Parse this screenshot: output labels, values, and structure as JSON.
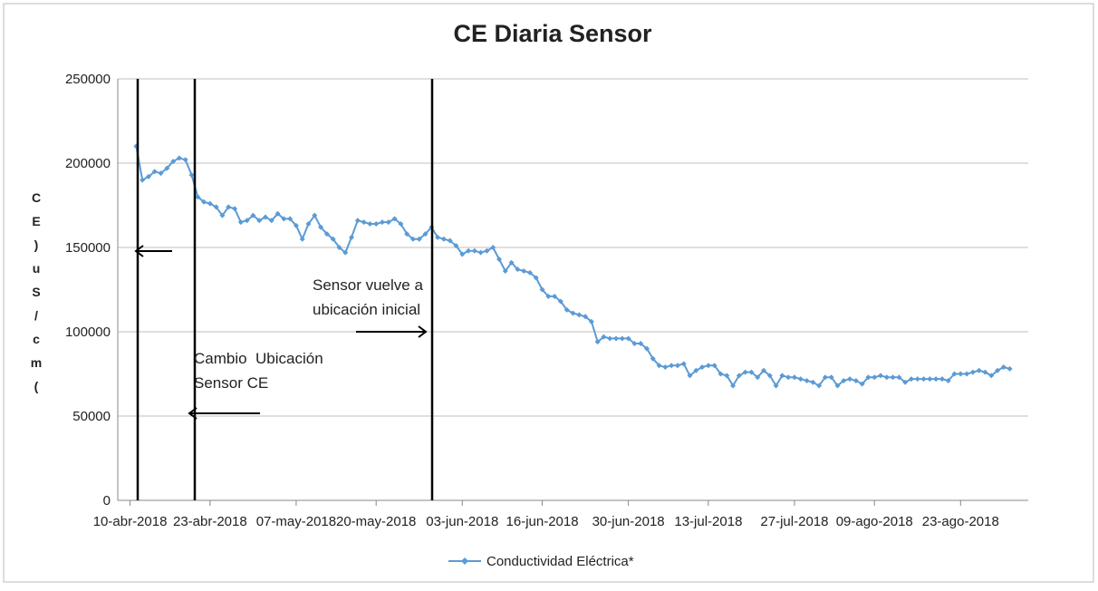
{
  "chart_data": {
    "type": "line",
    "title": "CE Diaria Sensor",
    "y_label": "CE)uS/cm(",
    "annotations": [
      [
        "Sensor vuelve a",
        "ubicación inicial"
      ],
      [
        "Cambio  Ubicación",
        "Sensor CE"
      ]
    ],
    "x": [
      "2018-04-11",
      "2018-04-12",
      "2018-04-13",
      "2018-04-14",
      "2018-04-15",
      "2018-04-16",
      "2018-04-17",
      "2018-04-18",
      "2018-04-19",
      "2018-04-20",
      "2018-04-21",
      "2018-04-22",
      "2018-04-23",
      "2018-04-24",
      "2018-04-25",
      "2018-04-26",
      "2018-04-27",
      "2018-04-28",
      "2018-04-29",
      "2018-04-30",
      "2018-05-01",
      "2018-05-02",
      "2018-05-03",
      "2018-05-04",
      "2018-05-05",
      "2018-05-06",
      "2018-05-07",
      "2018-05-08",
      "2018-05-09",
      "2018-05-10",
      "2018-05-11",
      "2018-05-12",
      "2018-05-13",
      "2018-05-14",
      "2018-05-15",
      "2018-05-16",
      "2018-05-17",
      "2018-05-18",
      "2018-05-19",
      "2018-05-20",
      "2018-05-21",
      "2018-05-22",
      "2018-05-23",
      "2018-05-24",
      "2018-05-25",
      "2018-05-26",
      "2018-05-27",
      "2018-05-28",
      "2018-05-29",
      "2018-05-30",
      "2018-05-31",
      "2018-06-01",
      "2018-06-02",
      "2018-06-03",
      "2018-06-04",
      "2018-06-05",
      "2018-06-06",
      "2018-06-07",
      "2018-06-08",
      "2018-06-09",
      "2018-06-10",
      "2018-06-11",
      "2018-06-12",
      "2018-06-13",
      "2018-06-14",
      "2018-06-15",
      "2018-06-16",
      "2018-06-17",
      "2018-06-18",
      "2018-06-19",
      "2018-06-20",
      "2018-06-21",
      "2018-06-22",
      "2018-06-23",
      "2018-06-24",
      "2018-06-25",
      "2018-06-26",
      "2018-06-27",
      "2018-06-28",
      "2018-06-29",
      "2018-06-30",
      "2018-07-01",
      "2018-07-02",
      "2018-07-03",
      "2018-07-04",
      "2018-07-05",
      "2018-07-06",
      "2018-07-07",
      "2018-07-08",
      "2018-07-09",
      "2018-07-10",
      "2018-07-11",
      "2018-07-12",
      "2018-07-13",
      "2018-07-14",
      "2018-07-15",
      "2018-07-16",
      "2018-07-17",
      "2018-07-18",
      "2018-07-19",
      "2018-07-20",
      "2018-07-21",
      "2018-07-22",
      "2018-07-23",
      "2018-07-24",
      "2018-07-25",
      "2018-07-26",
      "2018-07-27",
      "2018-07-28",
      "2018-07-29",
      "2018-07-30",
      "2018-07-31",
      "2018-08-01",
      "2018-08-02",
      "2018-08-03",
      "2018-08-04",
      "2018-08-05",
      "2018-08-06",
      "2018-08-07",
      "2018-08-08",
      "2018-08-09",
      "2018-08-10",
      "2018-08-11",
      "2018-08-12",
      "2018-08-13",
      "2018-08-14",
      "2018-08-15",
      "2018-08-16",
      "2018-08-17",
      "2018-08-18",
      "2018-08-19",
      "2018-08-20",
      "2018-08-21",
      "2018-08-22",
      "2018-08-23",
      "2018-08-24",
      "2018-08-25",
      "2018-08-26",
      "2018-08-27",
      "2018-08-28",
      "2018-08-29",
      "2018-08-30",
      "2018-08-31"
    ],
    "series": [
      {
        "name": "Conductividad Eléctrica*",
        "color": "#5b9bd5",
        "values": [
          210000,
          190000,
          192000,
          195000,
          194000,
          197000,
          201000,
          203000,
          202000,
          193000,
          180000,
          177000,
          176000,
          174000,
          169000,
          174000,
          173000,
          165000,
          166000,
          169000,
          166000,
          168000,
          166000,
          170000,
          167000,
          167000,
          163000,
          155000,
          164000,
          169000,
          162000,
          158000,
          155000,
          150000,
          147000,
          156000,
          166000,
          165000,
          164000,
          164000,
          165000,
          165000,
          167000,
          164000,
          158000,
          155000,
          155000,
          158000,
          162000,
          156000,
          155000,
          154000,
          151000,
          146000,
          148000,
          148000,
          147000,
          148000,
          150000,
          143000,
          136000,
          141000,
          137000,
          136000,
          135000,
          132000,
          125000,
          121000,
          121000,
          118000,
          113000,
          111000,
          110000,
          109000,
          106000,
          94000,
          97000,
          96000,
          96000,
          96000,
          96000,
          93000,
          93000,
          90000,
          84000,
          80000,
          79000,
          80000,
          80000,
          81000,
          74000,
          77000,
          79000,
          80000,
          80000,
          75000,
          74000,
          68000,
          74000,
          76000,
          76000,
          73000,
          77000,
          74000,
          68000,
          74000,
          73000,
          73000,
          72000,
          71000,
          70000,
          68000,
          73000,
          73000,
          68000,
          71000,
          72000,
          71000,
          69000,
          73000,
          73000,
          74000,
          73000,
          73000,
          73000,
          70000,
          72000,
          72000,
          72000,
          72000,
          72000,
          72000,
          71000,
          75000,
          75000,
          75000,
          76000,
          77000,
          76000,
          74000,
          77000,
          79000,
          78000
        ]
      }
    ],
    "xlim": [
      "2018-04-08",
      "2018-09-03"
    ],
    "xticks": [
      {
        "value": "2018-04-10",
        "label": "10-abr-2018"
      },
      {
        "value": "2018-04-23",
        "label": "23-abr-2018"
      },
      {
        "value": "2018-05-07",
        "label": "07-may-2018"
      },
      {
        "value": "2018-05-20",
        "label": "20-may-2018"
      },
      {
        "value": "2018-06-03",
        "label": "03-jun-2018"
      },
      {
        "value": "2018-06-16",
        "label": "16-jun-2018"
      },
      {
        "value": "2018-06-30",
        "label": "30-jun-2018"
      },
      {
        "value": "2018-07-13",
        "label": "13-jul-2018"
      },
      {
        "value": "2018-07-27",
        "label": "27-jul-2018"
      },
      {
        "value": "2018-08-09",
        "label": "09-ago-2018"
      },
      {
        "value": "2018-08-23",
        "label": "23-ago-2018"
      }
    ],
    "ylim": [
      0,
      250000
    ],
    "yticks": [
      0,
      50000,
      100000,
      150000,
      200000,
      250000
    ],
    "grid": true,
    "legend": "bottom"
  }
}
